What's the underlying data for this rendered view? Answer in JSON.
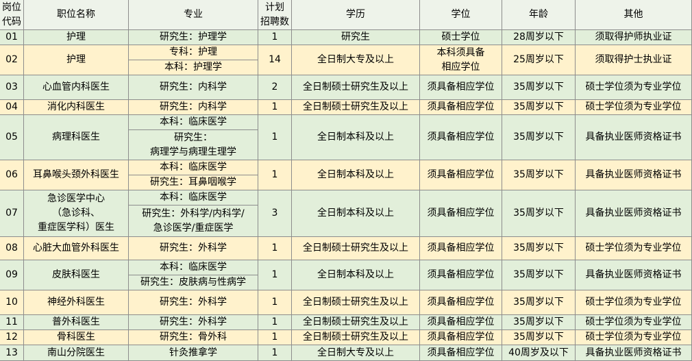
{
  "header": [
    "岗位\n代码",
    "职位名称",
    "专业",
    "计划\n招聘数",
    "学历",
    "学位",
    "年龄",
    "其他"
  ],
  "rows": [
    {
      "code": "01",
      "title": "护理",
      "majors": [
        "研究生：护理学"
      ],
      "count": 1,
      "education": "研究生",
      "degree": "硕士学位",
      "age": "28周岁以下",
      "other": "须取得护师执业证"
    },
    {
      "code": "02",
      "title": "护理",
      "majors": [
        "专科：护理",
        "本科：护理学"
      ],
      "count": 14,
      "education": "全日制大专及以上",
      "degree": "本科须具备\n相应学位",
      "age": "25周岁以下",
      "other": "须取得护士执业证"
    },
    {
      "code": "03",
      "title": "心血管内科医生",
      "majors": [
        "研究生：内科学"
      ],
      "count": 2,
      "education": "全日制硕士研究生及以上",
      "degree": "须具备相应学位",
      "age": "35周岁以下",
      "other": "硕士学位须为专业学位"
    },
    {
      "code": "04",
      "title": "消化内科医生",
      "majors": [
        "研究生：内科学"
      ],
      "count": 1,
      "education": "全日制硕士研究生及以上",
      "degree": "须具备相应学位",
      "age": "35周岁以下",
      "other": "硕士学位须为专业学位"
    },
    {
      "code": "05",
      "title": "病理科医生",
      "majors": [
        "本科：临床医学",
        "研究生：\n病理学与病理生理学"
      ],
      "count": 1,
      "education": "全日制本科及以上",
      "degree": "须具备相应学位",
      "age": "35周岁以下",
      "other": "具备执业医师资格证书"
    },
    {
      "code": "06",
      "title": "耳鼻喉头颈外科医生",
      "majors": [
        "本科：临床医学",
        "研究生：耳鼻咽喉学"
      ],
      "count": 1,
      "education": "全日制本科及以上",
      "degree": "须具备相应学位",
      "age": "35周岁以下",
      "other": "具备执业医师资格证书"
    },
    {
      "code": "07",
      "title": "急诊医学中心\n（急诊科、\n重症医学科）医生",
      "majors": [
        "本科：临床医学",
        "研究生：外科学/内科学/\n急诊医学/重症医学"
      ],
      "count": 3,
      "education": "全日制本科及以上",
      "degree": "须具备相应学位",
      "age": "35周岁以下",
      "other": "具备执业医师资格证书"
    },
    {
      "code": "08",
      "title": "心脏大血管外科医生",
      "majors": [
        "研究生：外科学"
      ],
      "count": 1,
      "education": "全日制硕士研究生及以上",
      "degree": "须具备相应学位",
      "age": "35周岁以下",
      "other": "硕士学位须为专业学位"
    },
    {
      "code": "09",
      "title": "皮肤科医生",
      "majors": [
        "本科：临床医学",
        "研究生：皮肤病与性病学"
      ],
      "count": 1,
      "education": "全日制本科及以上",
      "degree": "须具备相应学位",
      "age": "35周岁以下",
      "other": "具备执业医师资格证书"
    },
    {
      "code": "10",
      "title": "神经外科医生",
      "majors": [
        "研究生：外科学"
      ],
      "count": 1,
      "education": "全日制硕士研究生及以上",
      "degree": "须具备相应学位",
      "age": "35周岁以下",
      "other": "硕士学位须为专业学位"
    },
    {
      "code": "11",
      "title": "普外科医生",
      "majors": [
        "研究生：外科学"
      ],
      "count": 1,
      "education": "全日制硕士研究生及以上",
      "degree": "须具备相应学位",
      "age": "35周岁以下",
      "other": "硕士学位须为专业学位"
    },
    {
      "code": "12",
      "title": "骨科医生",
      "majors": [
        "研究生：骨外科"
      ],
      "count": 1,
      "education": "全日制硕士研究生及以上",
      "degree": "须具备相应学位",
      "age": "35周岁以下",
      "other": "硕士学位须为专业学位"
    },
    {
      "code": "13",
      "title": "南山分院医生",
      "majors": [
        "针灸推拿学"
      ],
      "count": 1,
      "education": "全日制大专及以上",
      "degree": "须具备相应学位",
      "age": "40周岁及以下",
      "other": "具备执业医师资格证书"
    }
  ]
}
